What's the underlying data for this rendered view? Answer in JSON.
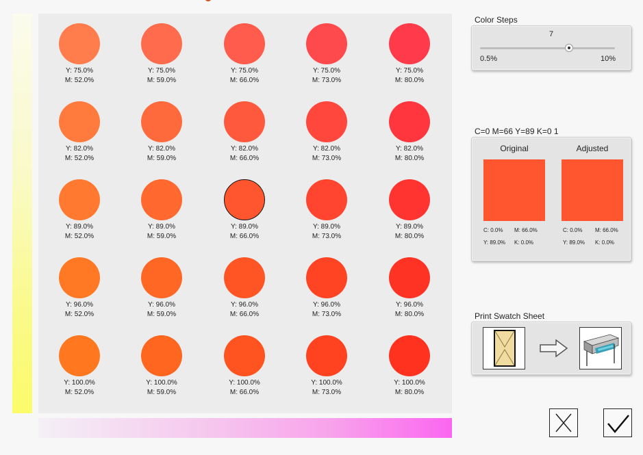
{
  "swatch_grid": {
    "rows": [
      {
        "y_label": "Y: 75.0%",
        "y": 75,
        "cells": [
          {
            "m_label": "M: 52.0%",
            "m": 52,
            "color": "#ff7d4d"
          },
          {
            "m_label": "M: 59.0%",
            "m": 59,
            "color": "#ff6b4d"
          },
          {
            "m_label": "M: 66.0%",
            "m": 66,
            "color": "#ff5c4d"
          },
          {
            "m_label": "M: 73.0%",
            "m": 73,
            "color": "#ff4a4d"
          },
          {
            "m_label": "M: 80.0%",
            "m": 80,
            "color": "#ff3a4b"
          }
        ]
      },
      {
        "y_label": "Y: 82.0%",
        "y": 82,
        "cells": [
          {
            "m_label": "M: 52.0%",
            "m": 52,
            "color": "#ff7b3d"
          },
          {
            "m_label": "M: 59.0%",
            "m": 59,
            "color": "#ff6a3d"
          },
          {
            "m_label": "M: 66.0%",
            "m": 66,
            "color": "#ff593d"
          },
          {
            "m_label": "M: 73.0%",
            "m": 73,
            "color": "#ff473d"
          },
          {
            "m_label": "M: 80.0%",
            "m": 80,
            "color": "#ff363d"
          }
        ]
      },
      {
        "y_label": "Y: 89.0%",
        "y": 89,
        "cells": [
          {
            "m_label": "M: 52.0%",
            "m": 52,
            "color": "#ff7a30"
          },
          {
            "m_label": "M: 59.0%",
            "m": 59,
            "color": "#ff682f"
          },
          {
            "m_label": "M: 66.0%",
            "m": 66,
            "color": "#ff5630",
            "selected": true
          },
          {
            "m_label": "M: 73.0%",
            "m": 73,
            "color": "#ff4530"
          },
          {
            "m_label": "M: 80.0%",
            "m": 80,
            "color": "#ff3430"
          }
        ]
      },
      {
        "y_label": "Y: 96.0%",
        "y": 96,
        "cells": [
          {
            "m_label": "M: 52.0%",
            "m": 52,
            "color": "#ff7924"
          },
          {
            "m_label": "M: 59.0%",
            "m": 59,
            "color": "#ff6724"
          },
          {
            "m_label": "M: 66.0%",
            "m": 66,
            "color": "#ff5524"
          },
          {
            "m_label": "M: 73.0%",
            "m": 73,
            "color": "#ff4424"
          },
          {
            "m_label": "M: 80.0%",
            "m": 80,
            "color": "#ff3324"
          }
        ]
      },
      {
        "y_label": "Y: 100.0%",
        "y": 100,
        "cells": [
          {
            "m_label": "M: 52.0%",
            "m": 52,
            "color": "#ff781f"
          },
          {
            "m_label": "M: 59.0%",
            "m": 59,
            "color": "#ff661f"
          },
          {
            "m_label": "M: 66.0%",
            "m": 66,
            "color": "#ff541f"
          },
          {
            "m_label": "M: 73.0%",
            "m": 73,
            "color": "#ff421f"
          },
          {
            "m_label": "M: 80.0%",
            "m": 80,
            "color": "#ff321f"
          }
        ]
      }
    ]
  },
  "color_steps": {
    "title": "Color Steps",
    "value": "7",
    "min_label": "0.5%",
    "max_label": "10%",
    "slider_position_fraction": 0.66
  },
  "compare": {
    "title": "C=0 M=66 Y=89 K=0 1",
    "original": {
      "heading": "Original",
      "color": "#ff5630",
      "c": "C: 0.0%",
      "m": "M: 66.0%",
      "y": "Y: 89.0%",
      "k": "K: 0.0%"
    },
    "adjusted": {
      "heading": "Adjusted",
      "color": "#ff5630",
      "c": "C: 0.0%",
      "m": "M: 66.0%",
      "y": "Y: 89.0%",
      "k": "K: 0.0%"
    }
  },
  "print": {
    "title": "Print Swatch Sheet",
    "source_icon": "swatch-paper-icon",
    "arrow_icon": "arrow-right-icon",
    "target_icon": "printer-icon"
  },
  "dialog": {
    "cancel_icon": "close-icon",
    "ok_icon": "check-icon"
  },
  "gradients": {
    "yellow_axis": [
      "#fbfbee",
      "#fbfb6a"
    ],
    "magenta_axis": [
      "#f4f0f6",
      "#fb66f0"
    ]
  }
}
